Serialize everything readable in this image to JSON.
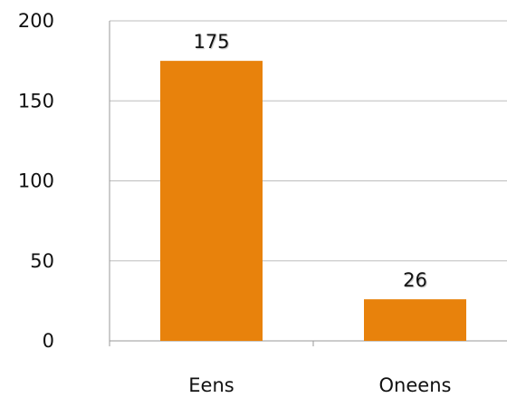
{
  "chart_data": {
    "type": "bar",
    "categories": [
      "Eens",
      "Oneens"
    ],
    "values": [
      175,
      26
    ],
    "data_labels": [
      "175",
      "26"
    ],
    "ylim": [
      0,
      200
    ],
    "yticks": [
      0,
      50,
      100,
      150,
      200
    ],
    "ytick_labels": [
      "0",
      "50",
      "100",
      "150",
      "200"
    ],
    "grid": true,
    "title": "",
    "xlabel": "",
    "ylabel": "",
    "bar_color": "#E8820C"
  }
}
